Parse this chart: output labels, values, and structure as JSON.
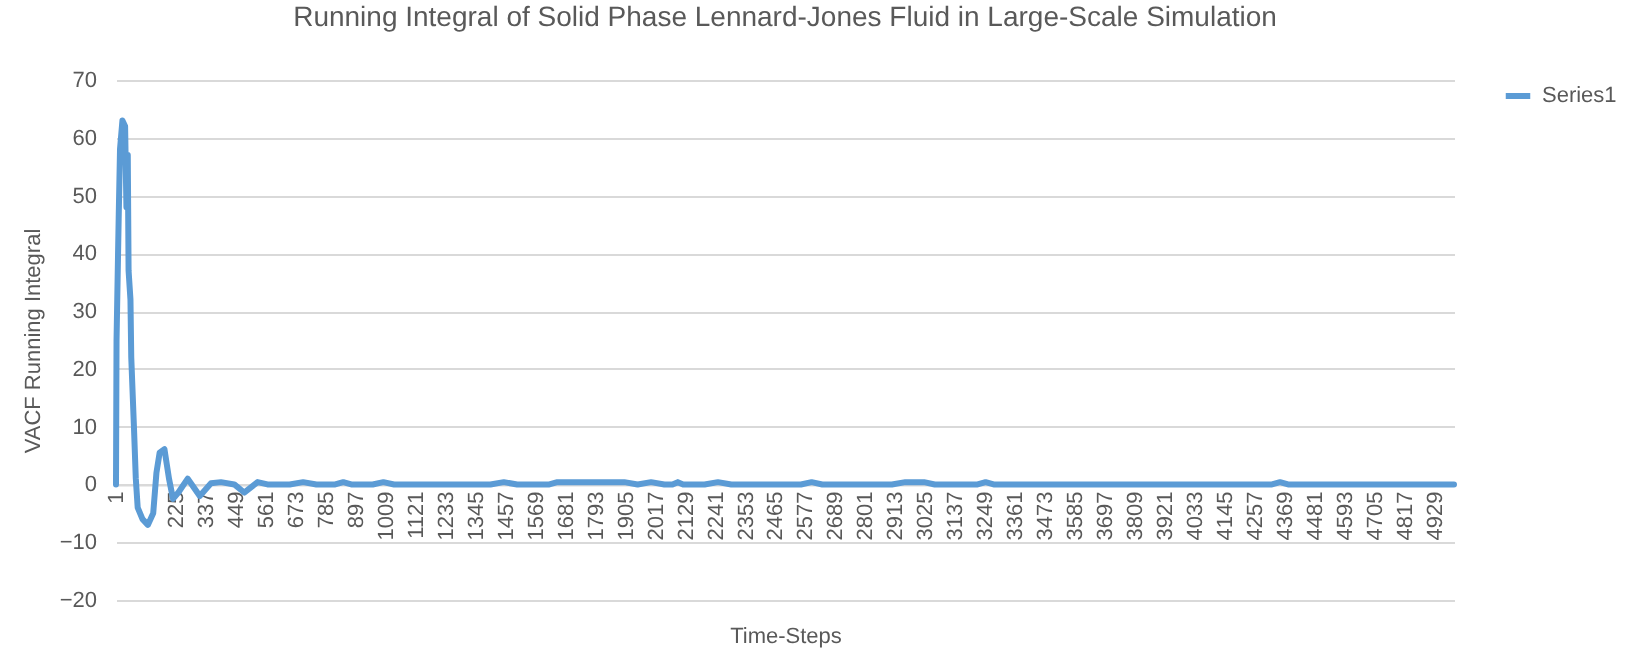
{
  "chart_data": {
    "type": "line",
    "title": "Running Integral of Solid Phase Lennard-Jones Fluid in Large-Scale Simulation",
    "xlabel": "Time-Steps",
    "ylabel": "VACF Running Integral",
    "x": [
      1,
      3,
      11,
      16,
      25,
      35,
      40,
      45,
      48,
      55,
      58,
      68,
      75,
      82,
      100,
      120,
      140,
      152,
      164,
      182,
      199,
      214,
      234,
      269,
      314,
      356,
      393,
      443,
      480,
      530,
      567,
      650,
      700,
      750,
      820,
      850,
      880,
      960,
      1000,
      1040,
      1400,
      1450,
      1500,
      1620,
      1650,
      1700,
      1900,
      1950,
      2000,
      2050,
      2080,
      2100,
      2120,
      2200,
      2250,
      2300,
      2560,
      2600,
      2640,
      2900,
      2950,
      3020,
      3060,
      3220,
      3250,
      3280,
      4320,
      4350,
      4380,
      5000
    ],
    "series": [
      {
        "name": "Series1",
        "color": "#5b9bd5",
        "values": [
          0,
          25,
          46,
          58,
          63,
          62,
          48,
          57,
          37,
          32,
          22,
          10,
          1,
          -4,
          -6,
          -7,
          -5,
          2,
          5.5,
          6.1,
          1,
          -2.5,
          -1.4,
          1,
          -2,
          0.2,
          0.4,
          0,
          -1.4,
          0.4,
          0,
          0,
          0.4,
          0,
          0,
          0.4,
          0,
          0,
          0.4,
          0,
          0,
          0.4,
          0,
          0,
          0.4,
          0.4,
          0.4,
          0,
          0.4,
          0,
          0,
          0.4,
          0,
          0,
          0.4,
          0,
          0,
          0.4,
          0,
          0,
          0.4,
          0.4,
          0,
          0,
          0.4,
          0,
          0,
          0.4,
          0,
          0
        ]
      }
    ],
    "xlim": [
      1,
      5000
    ],
    "xticks": [
      1,
      225,
      337,
      449,
      561,
      673,
      785,
      897,
      1009,
      1121,
      1233,
      1345,
      1457,
      1569,
      1681,
      1793,
      1905,
      2017,
      2129,
      2241,
      2353,
      2465,
      2577,
      2689,
      2801,
      2913,
      3025,
      3137,
      3249,
      3361,
      3473,
      3585,
      3697,
      3809,
      3921,
      4033,
      4145,
      4257,
      4369,
      4481,
      4593,
      4705,
      4817,
      4929
    ],
    "ylim": [
      -20,
      70
    ],
    "yticks": [
      -20,
      -10,
      0,
      10,
      20,
      30,
      40,
      50,
      60,
      70
    ],
    "grid": "y",
    "legend": "right"
  }
}
